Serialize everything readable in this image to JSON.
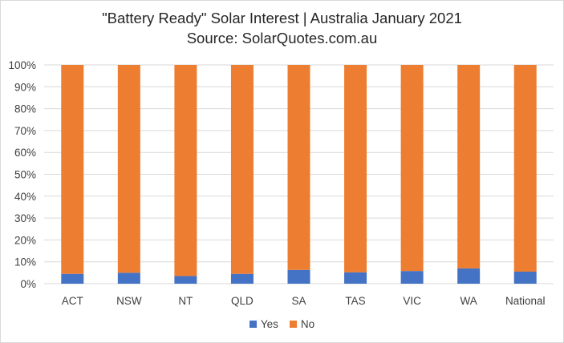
{
  "chart_data": {
    "type": "bar",
    "stacked": true,
    "title": "\"Battery Ready\" Solar Interest | Australia January 2021",
    "subtitle": "Source: SolarQuotes.com.au",
    "categories": [
      "ACT",
      "NSW",
      "NT",
      "QLD",
      "SA",
      "TAS",
      "VIC",
      "WA",
      "National"
    ],
    "series": [
      {
        "name": "Yes",
        "color": "#4472c4",
        "values": [
          4.5,
          5.0,
          3.5,
          4.5,
          6.3,
          5.2,
          5.8,
          7.0,
          5.5
        ]
      },
      {
        "name": "No",
        "color": "#ed7d31",
        "values": [
          95.5,
          95.0,
          96.5,
          95.5,
          93.7,
          94.8,
          94.2,
          93.0,
          94.5
        ]
      }
    ],
    "yticks": [
      "0%",
      "10%",
      "20%",
      "30%",
      "40%",
      "50%",
      "60%",
      "70%",
      "80%",
      "90%",
      "100%"
    ],
    "ylim": [
      0,
      100
    ],
    "grid": true,
    "legend_position": "bottom"
  }
}
